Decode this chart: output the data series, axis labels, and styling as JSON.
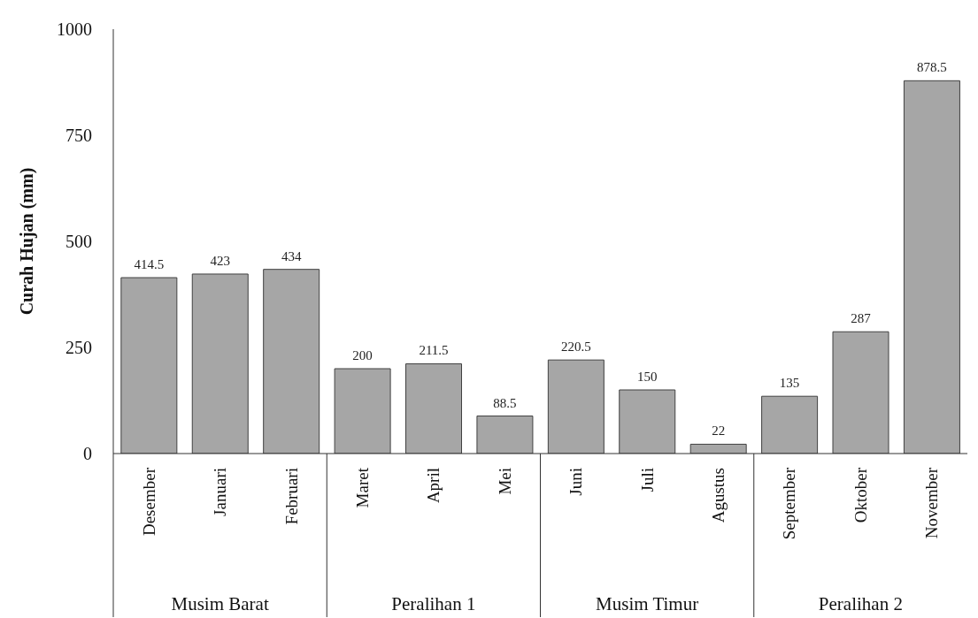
{
  "chart_data": {
    "type": "bar",
    "ylabel": "Curah Hujan (mm)",
    "categories": [
      "Desember",
      "Januari",
      "Februari",
      "Maret",
      "April",
      "Mei",
      "Juni",
      "Juli",
      "Agustus",
      "September",
      "Oktober",
      "November"
    ],
    "values": [
      414.5,
      423,
      434,
      200,
      211.5,
      88.5,
      220.5,
      150,
      22,
      135,
      287,
      878.5
    ],
    "color": "#a6a6a6",
    "ylim": [
      0,
      1000
    ],
    "yticks": [
      0,
      250,
      500,
      750,
      1000
    ],
    "grid": false,
    "data_labels": true,
    "annotations": [
      "Musim Barat",
      "Peralihan 1",
      "Musim Timur",
      "Peralihan 2"
    ]
  }
}
